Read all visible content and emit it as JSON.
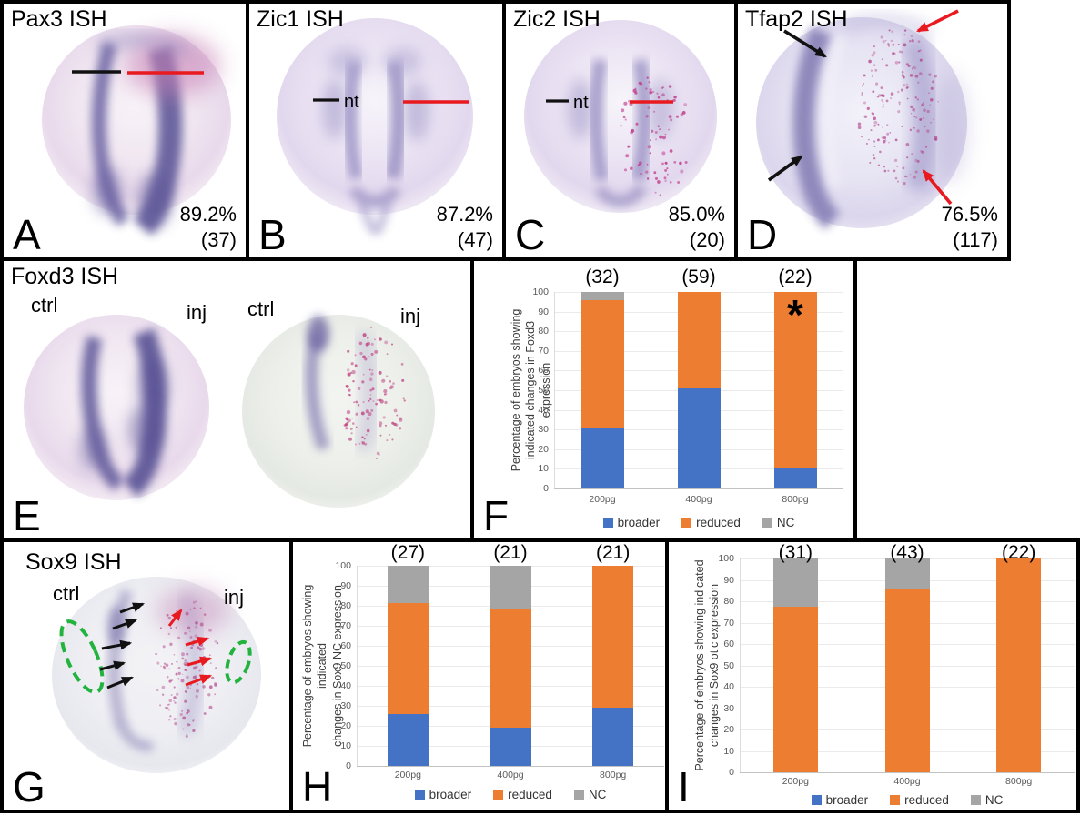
{
  "colors": {
    "bar_broader": "#4472C4",
    "bar_reduced": "#ED7D31",
    "bar_nc": "#A5A5A5",
    "red_annotation": "#E8191F",
    "green_dash": "#22B33E",
    "black_annotation": "#111111"
  },
  "panels": {
    "A": {
      "letter": "A",
      "title": "Pax3 ISH",
      "percent": "89.2%",
      "count": "(37)"
    },
    "B": {
      "letter": "B",
      "title": "Zic1 ISH",
      "percent": "87.2%",
      "count": "(47)",
      "nt_label": "nt"
    },
    "C": {
      "letter": "C",
      "title": "Zic2 ISH",
      "percent": "85.0%",
      "count": "(20)",
      "nt_label": "nt"
    },
    "D": {
      "letter": "D",
      "title": "Tfap2 ISH",
      "percent": "76.5%",
      "count": "(117)"
    },
    "E": {
      "letter": "E",
      "title": "Foxd3 ISH",
      "labels": [
        "ctrl",
        "inj",
        "ctrl",
        "inj"
      ]
    },
    "F": {
      "letter": "F"
    },
    "G": {
      "letter": "G",
      "title": "Sox9 ISH",
      "labels": [
        "ctrl",
        "inj"
      ]
    },
    "H": {
      "letter": "H"
    },
    "I": {
      "letter": "I"
    }
  },
  "chart_data": [
    {
      "panel": "F",
      "type": "bar",
      "subtype": "stacked",
      "categories": [
        "200pg",
        "400pg",
        "800pg"
      ],
      "bar_counts": [
        "(32)",
        "(59)",
        "(22)"
      ],
      "series": [
        {
          "name": "broader",
          "color": "#4472C4",
          "values": [
            31,
            51,
            10
          ]
        },
        {
          "name": "reduced",
          "color": "#ED7D31",
          "values": [
            65,
            49,
            90
          ]
        },
        {
          "name": "NC",
          "color": "#A5A5A5",
          "values": [
            4,
            0,
            0
          ]
        }
      ],
      "ylabel_line1": "Percentage of embryos showing",
      "ylabel_line2": "indicated changes in Foxd3 expression",
      "ylim": [
        0,
        100
      ],
      "yticks": [
        0,
        10,
        20,
        30,
        40,
        50,
        60,
        70,
        80,
        90,
        100
      ],
      "grid": true,
      "legend_position": "bottom",
      "annotations": [
        {
          "text": "*",
          "category_index": 2
        }
      ]
    },
    {
      "panel": "H",
      "type": "bar",
      "subtype": "stacked",
      "categories": [
        "200pg",
        "400pg",
        "800pg"
      ],
      "bar_counts": [
        "(27)",
        "(21)",
        "(21)"
      ],
      "series": [
        {
          "name": "broader",
          "color": "#4472C4",
          "values": [
            26,
            19,
            29
          ]
        },
        {
          "name": "reduced",
          "color": "#ED7D31",
          "values": [
            55.5,
            59.5,
            71
          ]
        },
        {
          "name": "NC",
          "color": "#A5A5A5",
          "values": [
            18.5,
            21.5,
            0
          ]
        }
      ],
      "ylabel_line1": "Percentage of embryos showing indicated",
      "ylabel_line2": "changes in Sox9 NC expression",
      "ylim": [
        0,
        100
      ],
      "yticks": [
        0,
        10,
        20,
        30,
        40,
        50,
        60,
        70,
        80,
        90,
        100
      ],
      "grid": true,
      "legend_position": "bottom",
      "annotations": []
    },
    {
      "panel": "I",
      "type": "bar",
      "subtype": "stacked",
      "categories": [
        "200pg",
        "400pg",
        "800pg"
      ],
      "bar_counts": [
        "(31)",
        "(43)",
        "(22)"
      ],
      "series": [
        {
          "name": "broader",
          "color": "#4472C4",
          "values": [
            0,
            0,
            0
          ]
        },
        {
          "name": "reduced",
          "color": "#ED7D31",
          "values": [
            77.5,
            86,
            100
          ]
        },
        {
          "name": "NC",
          "color": "#A5A5A5",
          "values": [
            22.5,
            14,
            0
          ]
        }
      ],
      "ylabel_line1": "Percentage of embryos showing indicated",
      "ylabel_line2": "changes in Sox9 otic expression",
      "ylim": [
        0,
        100
      ],
      "yticks": [
        0,
        10,
        20,
        30,
        40,
        50,
        60,
        70,
        80,
        90,
        100
      ],
      "grid": true,
      "legend_position": "bottom",
      "annotations": []
    }
  ]
}
